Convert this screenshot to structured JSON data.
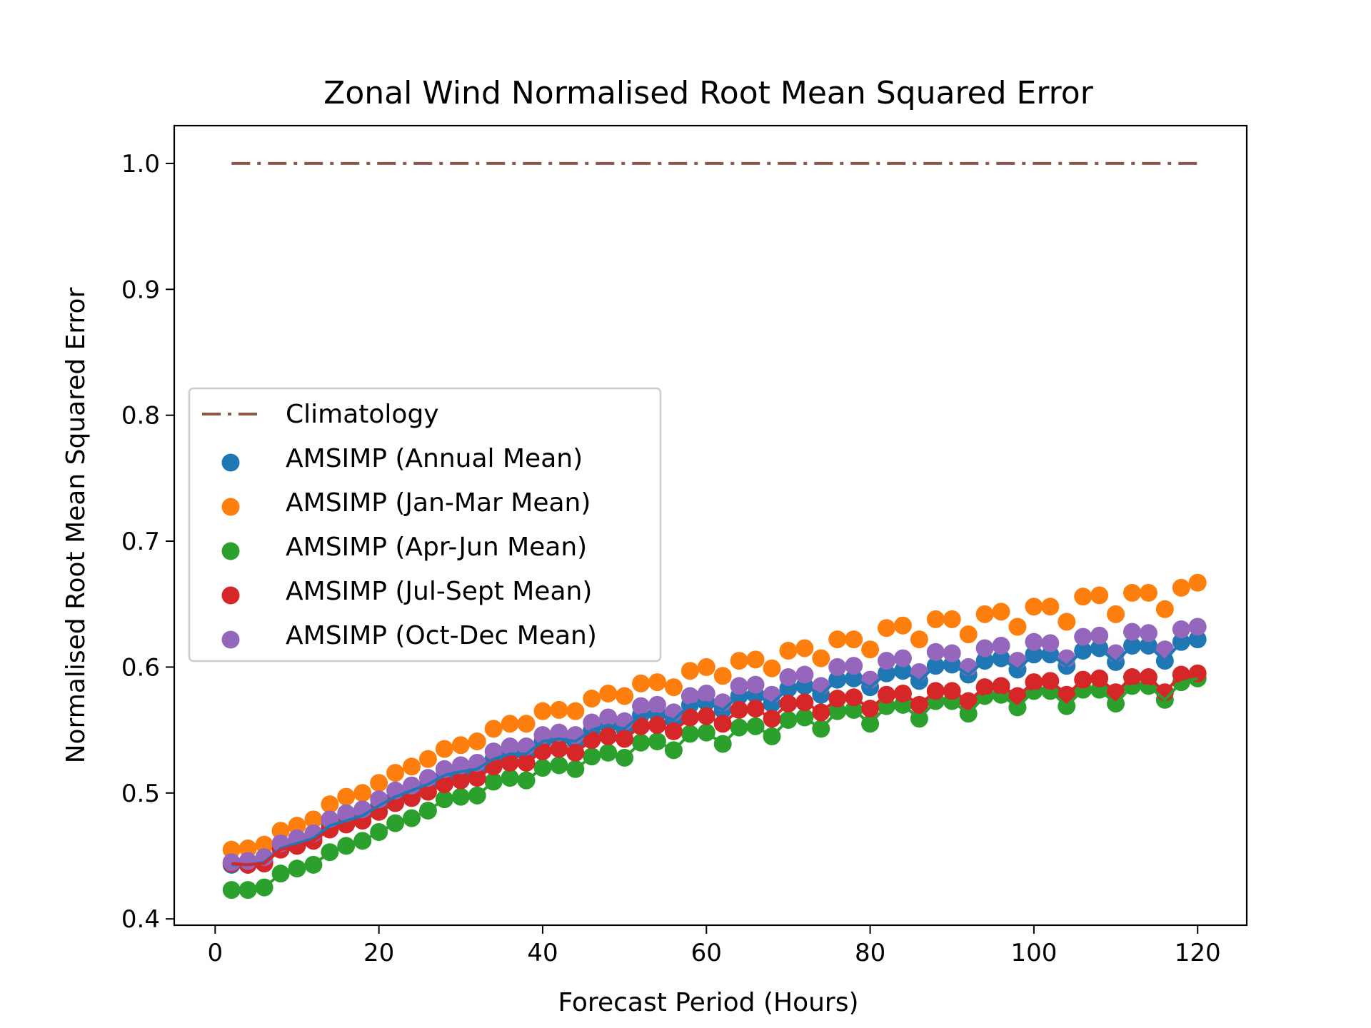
{
  "chart_data": {
    "type": "scatter",
    "title": "Zonal Wind Normalised Root Mean Squared Error",
    "xlabel": "Forecast Period (Hours)",
    "ylabel": "Normalised Root Mean Squared Error",
    "xlim": [
      -5,
      126
    ],
    "ylim": [
      0.395,
      1.03
    ],
    "xticks": [
      "0",
      "20",
      "40",
      "60",
      "80",
      "100",
      "120"
    ],
    "yticks": [
      "0.4",
      "0.5",
      "0.6",
      "0.7",
      "0.8",
      "0.9",
      "1.0"
    ],
    "grid": false,
    "legend_position": "center-left",
    "x": [
      2,
      4,
      6,
      8,
      10,
      12,
      14,
      16,
      18,
      20,
      22,
      24,
      26,
      28,
      30,
      32,
      34,
      36,
      38,
      40,
      42,
      44,
      46,
      48,
      50,
      52,
      54,
      56,
      58,
      60,
      62,
      64,
      66,
      68,
      70,
      72,
      74,
      76,
      78,
      80,
      82,
      84,
      86,
      88,
      90,
      92,
      94,
      96,
      98,
      100,
      102,
      104,
      106,
      108,
      110,
      112,
      114,
      116,
      118,
      120
    ],
    "reference": {
      "name": "Climatology",
      "color": "#8c564b",
      "style": "dash-dot",
      "x": [
        2,
        120
      ],
      "values": [
        1.0,
        1.0
      ]
    },
    "series": [
      {
        "name": "AMSIMP (Annual Mean)",
        "color": "#1f77b4",
        "line": true,
        "values": [
          0.443,
          0.443,
          0.445,
          0.456,
          0.46,
          0.464,
          0.474,
          0.478,
          0.482,
          0.49,
          0.497,
          0.502,
          0.507,
          0.514,
          0.517,
          0.519,
          0.527,
          0.531,
          0.531,
          0.541,
          0.543,
          0.541,
          0.55,
          0.554,
          0.551,
          0.562,
          0.563,
          0.558,
          0.57,
          0.572,
          0.566,
          0.577,
          0.578,
          0.571,
          0.583,
          0.585,
          0.578,
          0.59,
          0.591,
          0.584,
          0.595,
          0.597,
          0.589,
          0.601,
          0.602,
          0.594,
          0.605,
          0.607,
          0.598,
          0.61,
          0.61,
          0.601,
          0.613,
          0.615,
          0.604,
          0.617,
          0.617,
          0.605,
          0.62,
          0.622
        ]
      },
      {
        "name": "AMSIMP (Jan-Mar Mean)",
        "color": "#ff7f0e",
        "values": [
          0.455,
          0.456,
          0.459,
          0.47,
          0.474,
          0.479,
          0.491,
          0.497,
          0.5,
          0.508,
          0.516,
          0.521,
          0.527,
          0.535,
          0.538,
          0.541,
          0.551,
          0.555,
          0.555,
          0.565,
          0.566,
          0.565,
          0.575,
          0.579,
          0.577,
          0.587,
          0.588,
          0.584,
          0.597,
          0.6,
          0.593,
          0.605,
          0.606,
          0.599,
          0.613,
          0.615,
          0.607,
          0.622,
          0.622,
          0.614,
          0.631,
          0.633,
          0.622,
          0.638,
          0.638,
          0.626,
          0.642,
          0.644,
          0.632,
          0.648,
          0.648,
          0.636,
          0.656,
          0.657,
          0.642,
          0.659,
          0.659,
          0.646,
          0.663,
          0.667
        ]
      },
      {
        "name": "AMSIMP (Apr-Jun Mean)",
        "color": "#2ca02c",
        "line": true,
        "values": [
          0.423,
          0.423,
          0.425,
          0.436,
          0.44,
          0.443,
          0.453,
          0.458,
          0.462,
          0.469,
          0.476,
          0.48,
          0.486,
          0.495,
          0.497,
          0.498,
          0.509,
          0.512,
          0.51,
          0.52,
          0.522,
          0.519,
          0.529,
          0.532,
          0.528,
          0.54,
          0.541,
          0.534,
          0.547,
          0.548,
          0.539,
          0.552,
          0.553,
          0.545,
          0.558,
          0.56,
          0.551,
          0.565,
          0.566,
          0.555,
          0.569,
          0.57,
          0.559,
          0.573,
          0.573,
          0.563,
          0.577,
          0.578,
          0.568,
          0.581,
          0.581,
          0.569,
          0.582,
          0.582,
          0.571,
          0.585,
          0.585,
          0.574,
          0.588,
          0.591
        ]
      },
      {
        "name": "AMSIMP (Jul-Sept Mean)",
        "color": "#d62728",
        "line": true,
        "values": [
          0.444,
          0.443,
          0.444,
          0.455,
          0.458,
          0.462,
          0.471,
          0.475,
          0.478,
          0.485,
          0.492,
          0.496,
          0.501,
          0.507,
          0.51,
          0.512,
          0.521,
          0.524,
          0.524,
          0.533,
          0.535,
          0.532,
          0.542,
          0.545,
          0.543,
          0.553,
          0.554,
          0.549,
          0.56,
          0.561,
          0.555,
          0.566,
          0.567,
          0.559,
          0.571,
          0.572,
          0.564,
          0.575,
          0.576,
          0.567,
          0.578,
          0.579,
          0.57,
          0.581,
          0.581,
          0.573,
          0.584,
          0.585,
          0.577,
          0.588,
          0.589,
          0.578,
          0.59,
          0.591,
          0.58,
          0.592,
          0.592,
          0.58,
          0.594,
          0.595
        ]
      },
      {
        "name": "AMSIMP (Oct-Dec Mean)",
        "color": "#9467bd",
        "values": [
          0.445,
          0.446,
          0.449,
          0.46,
          0.464,
          0.468,
          0.479,
          0.484,
          0.487,
          0.495,
          0.502,
          0.506,
          0.512,
          0.519,
          0.522,
          0.524,
          0.533,
          0.537,
          0.537,
          0.546,
          0.548,
          0.546,
          0.556,
          0.56,
          0.557,
          0.569,
          0.57,
          0.564,
          0.577,
          0.579,
          0.572,
          0.585,
          0.586,
          0.578,
          0.592,
          0.594,
          0.585,
          0.6,
          0.601,
          0.59,
          0.605,
          0.607,
          0.596,
          0.612,
          0.611,
          0.6,
          0.615,
          0.617,
          0.605,
          0.62,
          0.619,
          0.607,
          0.624,
          0.625,
          0.611,
          0.628,
          0.627,
          0.614,
          0.63,
          0.632
        ]
      }
    ]
  }
}
